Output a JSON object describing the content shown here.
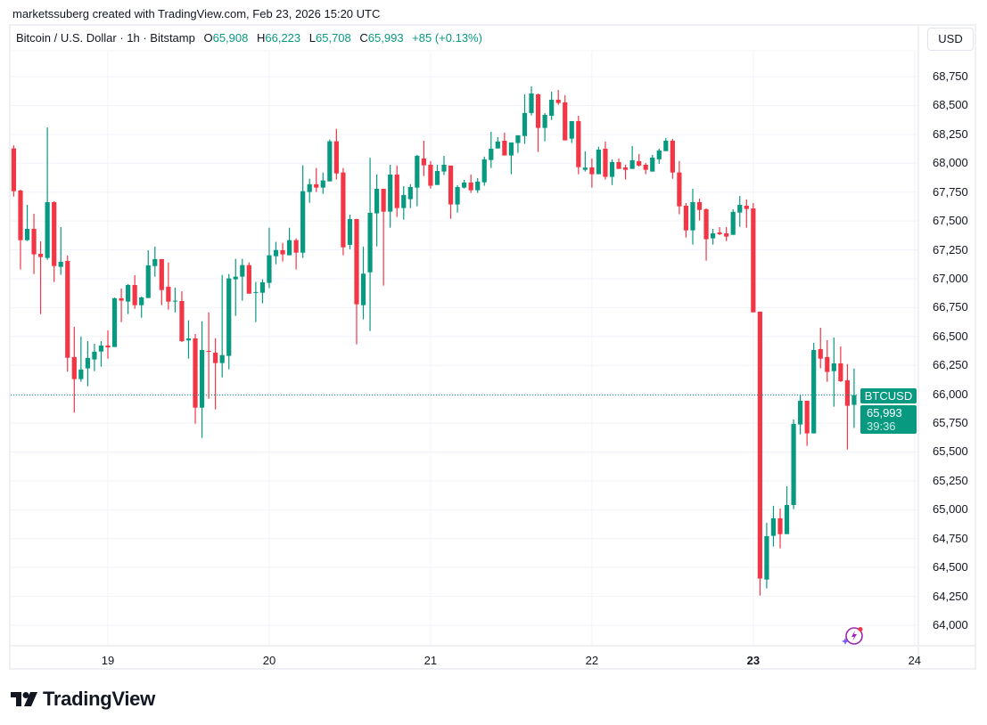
{
  "credit": "marketssuberg created with TradingView.com, Feb 23, 2026 15:20 UTC",
  "legend": {
    "symbol": "Bitcoin / U.S. Dollar · 1h · Bitstamp",
    "o_label": "O",
    "o": "65,908",
    "h_label": "H",
    "h": "66,223",
    "l_label": "L",
    "l": "65,708",
    "c_label": "C",
    "c": "65,993",
    "change": "+85 (+0.13%)"
  },
  "currency_button": "USD",
  "last_price": {
    "symbol": "BTCUSD",
    "price": "65,993",
    "countdown": "39:36",
    "value": 65993
  },
  "logo_text": "TradingView",
  "icons": {
    "logo": "tradingview-logo-icon",
    "assistant": "lightning-sparkle-icon"
  },
  "colors": {
    "up": "#089981",
    "down": "#f23645",
    "grid": "#f0f3fa",
    "accent_icon": "#9c27b0"
  },
  "chart_data": {
    "type": "candlestick",
    "interval": "1h",
    "y_ticks": [
      "64,000",
      "64,250",
      "64,500",
      "64,750",
      "65,000",
      "65,250",
      "65,500",
      "65,750",
      "66,000",
      "66,250",
      "66,500",
      "66,750",
      "67,000",
      "67,250",
      "67,500",
      "67,750",
      "68,000",
      "68,250",
      "68,500",
      "68,750"
    ],
    "ylim": [
      63880,
      68990
    ],
    "x_ticks": [
      {
        "label": "19",
        "date": "02-19",
        "bold": false
      },
      {
        "label": "20",
        "date": "02-20",
        "bold": false
      },
      {
        "label": "21",
        "date": "02-21",
        "bold": false
      },
      {
        "label": "22",
        "date": "02-22",
        "bold": false
      },
      {
        "label": "23",
        "date": "02-23",
        "bold": true
      },
      {
        "label": "24",
        "date": "02-24",
        "bold": false
      }
    ],
    "grid": true,
    "columns": [
      "time",
      "open",
      "high",
      "low",
      "close"
    ],
    "candles": [
      [
        "02-18 10:00",
        68128,
        68155,
        67712,
        67758
      ],
      [
        "02-18 11:00",
        67764,
        67771,
        67080,
        67334
      ],
      [
        "02-18 12:00",
        67334,
        67640,
        67326,
        67432
      ],
      [
        "02-18 13:00",
        67432,
        67563,
        67041,
        67211
      ],
      [
        "02-18 14:00",
        67216,
        67324,
        66694,
        67188
      ],
      [
        "02-18 15:00",
        67180,
        68311,
        67164,
        67663
      ],
      [
        "02-18 16:00",
        67663,
        67671,
        66972,
        67110
      ],
      [
        "02-18 17:00",
        67103,
        67447,
        67033,
        67147
      ],
      [
        "02-18 18:00",
        67154,
        67201,
        66196,
        66316
      ],
      [
        "02-18 19:00",
        66322,
        66584,
        65841,
        66131
      ],
      [
        "02-18 20:00",
        66131,
        66499,
        66108,
        66214
      ],
      [
        "02-18 21:00",
        66224,
        66460,
        66069,
        66314
      ],
      [
        "02-18 22:00",
        66301,
        66437,
        66200,
        66368
      ],
      [
        "02-18 23:00",
        66370,
        66460,
        66239,
        66422
      ],
      [
        "02-19 00:00",
        66422,
        66553,
        66308,
        66406
      ],
      [
        "02-19 01:00",
        66409,
        66838,
        66409,
        66831
      ],
      [
        "02-19 02:00",
        66831,
        66915,
        66625,
        66810
      ],
      [
        "02-19 03:00",
        66802,
        66954,
        66694,
        66946
      ],
      [
        "02-19 04:00",
        66946,
        67031,
        66740,
        66771
      ],
      [
        "02-19 05:00",
        66771,
        66846,
        66663,
        66838
      ],
      [
        "02-19 06:00",
        66833,
        67247,
        66833,
        67116
      ],
      [
        "02-19 07:00",
        67110,
        67278,
        67018,
        67170
      ],
      [
        "02-19 08:00",
        67170,
        67170,
        66771,
        66902
      ],
      [
        "02-19 09:00",
        66931,
        67141,
        66733,
        66802
      ],
      [
        "02-19 10:00",
        66805,
        66923,
        66709,
        66810
      ],
      [
        "02-19 11:00",
        66807,
        66892,
        66452,
        66460
      ],
      [
        "02-19 12:00",
        66466,
        66640,
        66308,
        66483
      ],
      [
        "02-19 13:00",
        66483,
        66522,
        65745,
        65884
      ],
      [
        "02-19 14:00",
        65884,
        66632,
        65622,
        66383
      ],
      [
        "02-19 15:00",
        66375,
        66709,
        65961,
        66370
      ],
      [
        "02-19 16:00",
        66360,
        66486,
        65869,
        66270
      ],
      [
        "02-19 17:00",
        66270,
        67033,
        66146,
        66339
      ],
      [
        "02-19 18:00",
        66332,
        67041,
        66216,
        67003
      ],
      [
        "02-19 19:00",
        66995,
        67172,
        66678,
        67018
      ],
      [
        "02-19 20:00",
        67018,
        67172,
        66810,
        67118
      ],
      [
        "02-19 21:00",
        67118,
        67141,
        66871,
        66871
      ],
      [
        "02-19 22:00",
        66879,
        66972,
        66625,
        66885
      ],
      [
        "02-19 23:00",
        66879,
        66995,
        66787,
        66969
      ],
      [
        "02-20 00:00",
        66964,
        67442,
        66918,
        67203
      ],
      [
        "02-20 01:00",
        67195,
        67319,
        67126,
        67249
      ],
      [
        "02-20 02:00",
        67247,
        67311,
        67149,
        67211
      ],
      [
        "02-20 03:00",
        67203,
        67442,
        67203,
        67334
      ],
      [
        "02-20 04:00",
        67334,
        67349,
        67080,
        67226
      ],
      [
        "02-20 05:00",
        67226,
        67982,
        67180,
        67758
      ],
      [
        "02-20 06:00",
        67751,
        67866,
        67658,
        67818
      ],
      [
        "02-20 07:00",
        67818,
        67959,
        67751,
        67789
      ],
      [
        "02-20 08:00",
        67789,
        67920,
        67735,
        67851
      ],
      [
        "02-20 09:00",
        67843,
        68206,
        67843,
        68190
      ],
      [
        "02-20 10:00",
        68190,
        68298,
        67859,
        67912
      ],
      [
        "02-20 11:00",
        67920,
        67959,
        67203,
        67272
      ],
      [
        "02-20 12:00",
        67293,
        67555,
        67255,
        67517
      ],
      [
        "02-20 13:00",
        67517,
        67517,
        66432,
        66779
      ],
      [
        "02-20 14:00",
        66771,
        67278,
        66648,
        67044
      ],
      [
        "02-20 15:00",
        67056,
        68047,
        66548,
        67571
      ],
      [
        "02-20 16:00",
        67566,
        67902,
        67280,
        67779
      ],
      [
        "02-20 17:00",
        67779,
        67779,
        66941,
        67581
      ],
      [
        "02-20 18:00",
        67581,
        67987,
        67442,
        67902
      ],
      [
        "02-20 19:00",
        67902,
        67980,
        67535,
        67612
      ],
      [
        "02-20 20:00",
        67612,
        67802,
        67512,
        67725
      ],
      [
        "02-20 21:00",
        67689,
        67818,
        67612,
        67794
      ],
      [
        "02-20 22:00",
        67789,
        68072,
        67627,
        68064
      ],
      [
        "02-20 23:00",
        68041,
        68195,
        67889,
        67982
      ],
      [
        "02-21 00:00",
        67987,
        68018,
        67781,
        67805
      ],
      [
        "02-21 01:00",
        67812,
        67987,
        67812,
        67933
      ],
      [
        "02-21 02:00",
        67928,
        68064,
        67897,
        67987
      ],
      [
        "02-21 03:00",
        67980,
        67980,
        67519,
        67643
      ],
      [
        "02-21 04:00",
        67643,
        67810,
        67573,
        67794
      ],
      [
        "02-21 05:00",
        67789,
        67856,
        67781,
        67833
      ],
      [
        "02-21 06:00",
        67833,
        67902,
        67743,
        67766
      ],
      [
        "02-21 07:00",
        67766,
        67872,
        67743,
        67841
      ],
      [
        "02-21 08:00",
        67835,
        68057,
        67805,
        68034
      ],
      [
        "02-21 09:00",
        68028,
        68273,
        67959,
        68126
      ],
      [
        "02-21 10:00",
        68128,
        68226,
        68128,
        68188
      ],
      [
        "02-21 11:00",
        68195,
        68265,
        68067,
        68067
      ],
      [
        "02-21 12:00",
        68067,
        68180,
        67905,
        68180
      ],
      [
        "02-21 13:00",
        68175,
        68242,
        68090,
        68242
      ],
      [
        "02-21 14:00",
        68236,
        68597,
        68167,
        68435
      ],
      [
        "02-21 15:00",
        68435,
        68666,
        68414,
        68604
      ],
      [
        "02-21 16:00",
        68597,
        68604,
        68098,
        68306
      ],
      [
        "02-21 17:00",
        68306,
        68435,
        68190,
        68419
      ],
      [
        "02-21 18:00",
        68411,
        68620,
        68375,
        68550
      ],
      [
        "02-21 19:00",
        68550,
        68635,
        68506,
        68522
      ],
      [
        "02-21 20:00",
        68527,
        68589,
        68198,
        68198
      ],
      [
        "02-21 21:00",
        68213,
        68365,
        68175,
        68365
      ],
      [
        "02-21 22:00",
        68365,
        68411,
        67905,
        67966
      ],
      [
        "02-21 23:00",
        67943,
        68103,
        67928,
        67962
      ],
      [
        "02-22 00:00",
        67964,
        68041,
        67789,
        67905
      ],
      [
        "02-22 01:00",
        67905,
        68142,
        67905,
        68118
      ],
      [
        "02-22 02:00",
        68126,
        68188,
        67859,
        67882
      ],
      [
        "02-22 03:00",
        67882,
        68034,
        67812,
        68010
      ],
      [
        "02-22 04:00",
        68010,
        68041,
        67951,
        67951
      ],
      [
        "02-22 05:00",
        67964,
        67987,
        67859,
        67943
      ],
      [
        "02-22 06:00",
        67951,
        68149,
        67951,
        68026
      ],
      [
        "02-22 07:00",
        68018,
        68080,
        67972,
        67980
      ],
      [
        "02-22 08:00",
        67987,
        68003,
        67905,
        67943
      ],
      [
        "02-22 09:00",
        67928,
        68072,
        67928,
        68049
      ],
      [
        "02-22 10:00",
        68034,
        68126,
        67995,
        68111
      ],
      [
        "02-22 11:00",
        68105,
        68219,
        68105,
        68195
      ],
      [
        "02-22 12:00",
        68195,
        68211,
        67866,
        67920
      ],
      [
        "02-22 13:00",
        67920,
        68020,
        67558,
        67627
      ],
      [
        "02-22 14:00",
        67632,
        67656,
        67357,
        67419
      ],
      [
        "02-22 15:00",
        67419,
        67779,
        67296,
        67663
      ],
      [
        "02-22 16:00",
        67663,
        67694,
        67504,
        67596
      ],
      [
        "02-22 17:00",
        67602,
        67609,
        67157,
        67342
      ],
      [
        "02-22 18:00",
        67350,
        67432,
        67296,
        67393
      ],
      [
        "02-22 19:00",
        67401,
        67447,
        67378,
        67386
      ],
      [
        "02-22 20:00",
        67393,
        67447,
        67326,
        67365
      ],
      [
        "02-22 21:00",
        67380,
        67602,
        67380,
        67579
      ],
      [
        "02-22 22:00",
        67573,
        67717,
        67450,
        67640
      ],
      [
        "02-22 23:00",
        67632,
        67687,
        67442,
        67604
      ],
      [
        "02-23 00:00",
        67609,
        67656,
        66709,
        66709
      ],
      [
        "02-23 01:00",
        66715,
        66715,
        64257,
        64404
      ],
      [
        "02-23 02:00",
        64396,
        64887,
        64319,
        64771
      ],
      [
        "02-23 03:00",
        64774,
        65034,
        64681,
        64926
      ],
      [
        "02-23 04:00",
        64926,
        65011,
        64666,
        64789
      ],
      [
        "02-23 05:00",
        64789,
        65203,
        64789,
        65041
      ],
      [
        "02-23 06:00",
        65041,
        65782,
        65005,
        65743
      ],
      [
        "02-23 07:00",
        65738,
        65998,
        65653,
        65944
      ],
      [
        "02-23 08:00",
        65944,
        65944,
        65553,
        65661
      ],
      [
        "02-23 09:00",
        65661,
        66445,
        65661,
        66383
      ],
      [
        "02-23 10:00",
        66391,
        66576,
        66224,
        66308
      ],
      [
        "02-23 11:00",
        66322,
        66468,
        66108,
        66193
      ],
      [
        "02-23 12:00",
        66200,
        66491,
        65892,
        66267
      ],
      [
        "02-23 13:00",
        66267,
        66414,
        66106,
        66113
      ],
      [
        "02-23 14:00",
        66121,
        66261,
        65522,
        65900
      ],
      [
        "02-23 15:00",
        65908,
        66223,
        65708,
        65993
      ]
    ]
  }
}
